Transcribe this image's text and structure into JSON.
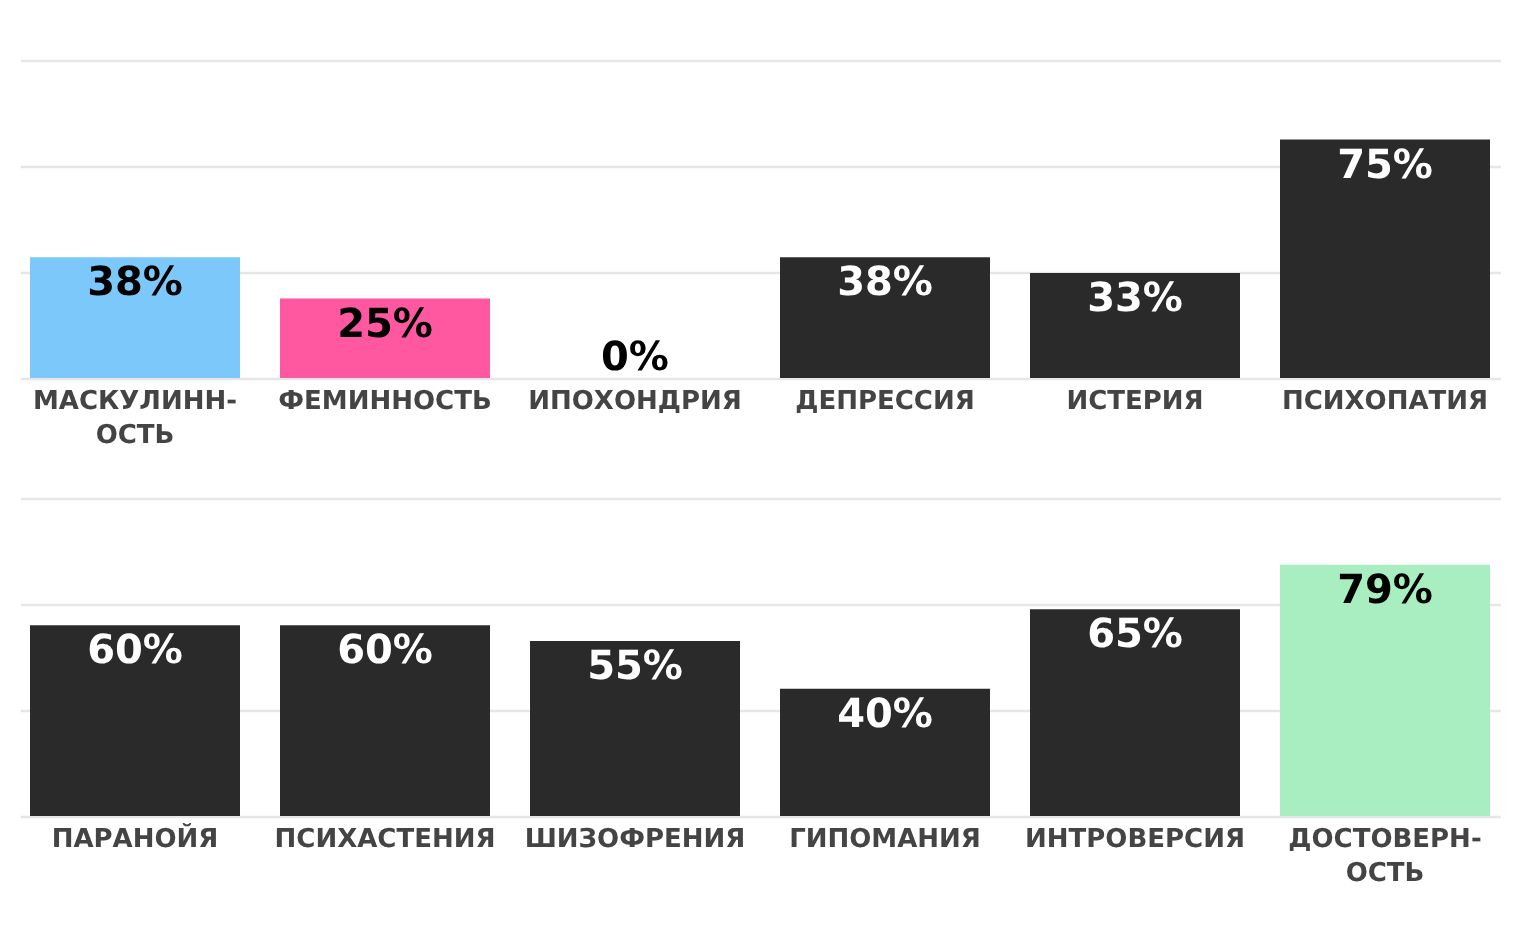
{
  "chart_data": [
    {
      "type": "bar",
      "categories": [
        "МАСКУЛИНН-ОСТЬ",
        "ФЕМИННОСТЬ",
        "ИПОХОНДРИЯ",
        "ДЕПРЕССИЯ",
        "ИСТЕРИЯ",
        "ПСИХОПАТИЯ"
      ],
      "values": [
        38,
        25,
        0,
        38,
        33,
        75
      ],
      "colors": [
        "#7cc8fa",
        "#ff58a0",
        "#2a2a2a",
        "#2a2a2a",
        "#2a2a2a",
        "#2a2a2a"
      ],
      "value_labels": [
        "38%",
        "25%",
        "0%",
        "38%",
        "33%",
        "75%"
      ],
      "ylim": [
        0,
        100
      ],
      "yticks": [
        {
          "value": 0,
          "label": null
        },
        {
          "value": 33.3,
          "label": null
        },
        {
          "value": 66.7,
          "label": null
        },
        {
          "value": 100,
          "label": null
        }
      ],
      "grid": "y",
      "tick_labels": "x"
    },
    {
      "type": "bar",
      "categories": [
        "ПАРАНОЙЯ",
        "ПСИХАСТЕНИЯ",
        "ШИЗОФРЕНИЯ",
        "ГИПОМАНИЯ",
        "ИНТРОВЕРСИЯ",
        "ДОСТОВЕРН-ОСТЬ"
      ],
      "values": [
        60,
        60,
        55,
        40,
        65,
        79
      ],
      "colors": [
        "#2a2a2a",
        "#2a2a2a",
        "#2a2a2a",
        "#2a2a2a",
        "#2a2a2a",
        "#a8eec0"
      ],
      "value_labels": [
        "60%",
        "60%",
        "55%",
        "40%",
        "65%",
        "79%"
      ],
      "ylim": [
        0,
        100
      ],
      "yticks": [
        {
          "value": 0,
          "label": null
        },
        {
          "value": 33.3,
          "label": null
        },
        {
          "value": 66.7,
          "label": null
        },
        {
          "value": 100,
          "label": null
        }
      ],
      "grid": "y",
      "tick_labels": "x"
    }
  ]
}
